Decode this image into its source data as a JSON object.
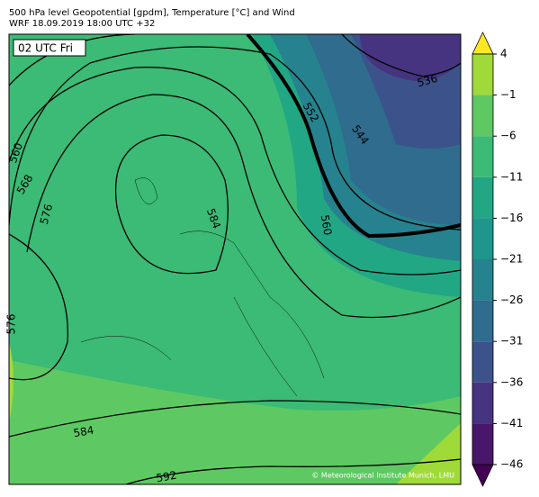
{
  "header": {
    "title": "500 hPa level Geopotential [gpdm], Temperature [°C] and Wind",
    "subtitle": "WRF 18.09.2019 18:00 UTC +32"
  },
  "map": {
    "time_label": "02 UTC Fri",
    "contour_labels": [
      "536",
      "552",
      "544",
      "560",
      "560",
      "568",
      "576",
      "584",
      "576",
      "584",
      "592"
    ],
    "credit": "© Meteorological Institute Munich, LMU"
  },
  "colorbar": {
    "ticks": [
      "4",
      "−1",
      "−6",
      "−11",
      "−16",
      "−21",
      "−26",
      "−31",
      "−36",
      "−41",
      "−46"
    ],
    "colors": [
      "#e5e419",
      "#a0da39",
      "#5ec962",
      "#3bbb75",
      "#22a785",
      "#1f968b",
      "#26828e",
      "#2f6c8e",
      "#3b528b",
      "#463480",
      "#481769"
    ],
    "extend_colors": [
      "#fde725",
      "#440154"
    ]
  }
}
